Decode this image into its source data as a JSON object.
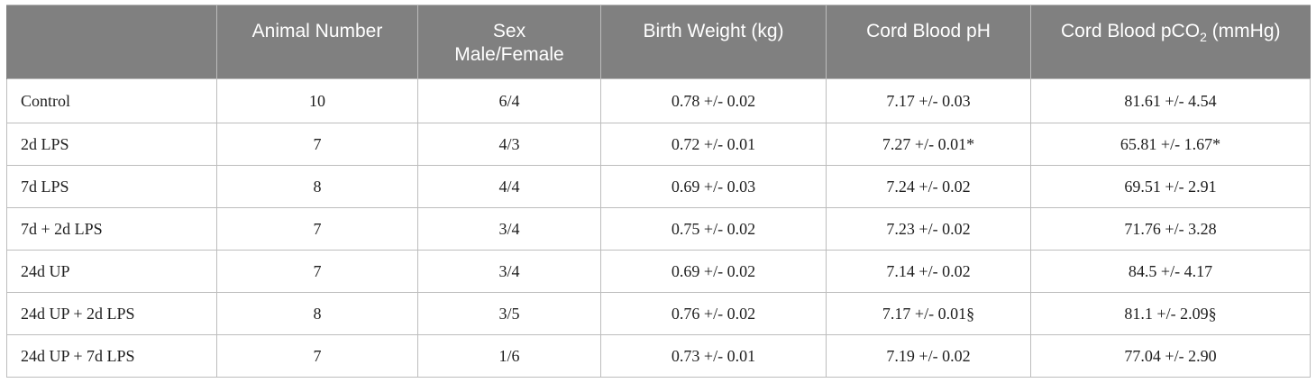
{
  "table": {
    "headers": {
      "group": "",
      "animal_number": "Animal Number",
      "sex_line1": "Sex",
      "sex_line2": "Male/Female",
      "birth_weight": "Birth Weight (kg)",
      "cord_ph": "Cord Blood pH",
      "cord_pco2_prefix": "Cord Blood pCO",
      "cord_pco2_sub": "2",
      "cord_pco2_suffix": " (mmHg)"
    },
    "rows": [
      {
        "group": "Control",
        "animal_number": "10",
        "sex": "6/4",
        "birth_weight": "0.78 +/- 0.02",
        "ph": "7.17 +/- 0.03",
        "pco2": "81.61 +/- 4.54"
      },
      {
        "group": "2d LPS",
        "animal_number": "7",
        "sex": "4/3",
        "birth_weight": "0.72 +/- 0.01",
        "ph": "7.27 +/- 0.01*",
        "pco2": "65.81 +/- 1.67*"
      },
      {
        "group": "7d LPS",
        "animal_number": "8",
        "sex": "4/4",
        "birth_weight": "0.69 +/- 0.03",
        "ph": "7.24 +/- 0.02",
        "pco2": "69.51 +/- 2.91"
      },
      {
        "group": "7d + 2d LPS",
        "animal_number": "7",
        "sex": "3/4",
        "birth_weight": "0.75 +/- 0.02",
        "ph": "7.23 +/- 0.02",
        "pco2": "71.76 +/- 3.28"
      },
      {
        "group": "24d UP",
        "animal_number": "7",
        "sex": "3/4",
        "birth_weight": "0.69 +/- 0.02",
        "ph": "7.14 +/- 0.02",
        "pco2": "84.5 +/- 4.17"
      },
      {
        "group": "24d UP + 2d LPS",
        "animal_number": "8",
        "sex": "3/5",
        "birth_weight": "0.76 +/- 0.02",
        "ph": "7.17 +/- 0.01§",
        "pco2": "81.1 +/- 2.09§"
      },
      {
        "group": "24d UP + 7d LPS",
        "animal_number": "7",
        "sex": "1/6",
        "birth_weight": "0.73 +/- 0.01",
        "ph": "7.19 +/- 0.02",
        "pco2": "77.04 +/- 2.90"
      }
    ]
  }
}
